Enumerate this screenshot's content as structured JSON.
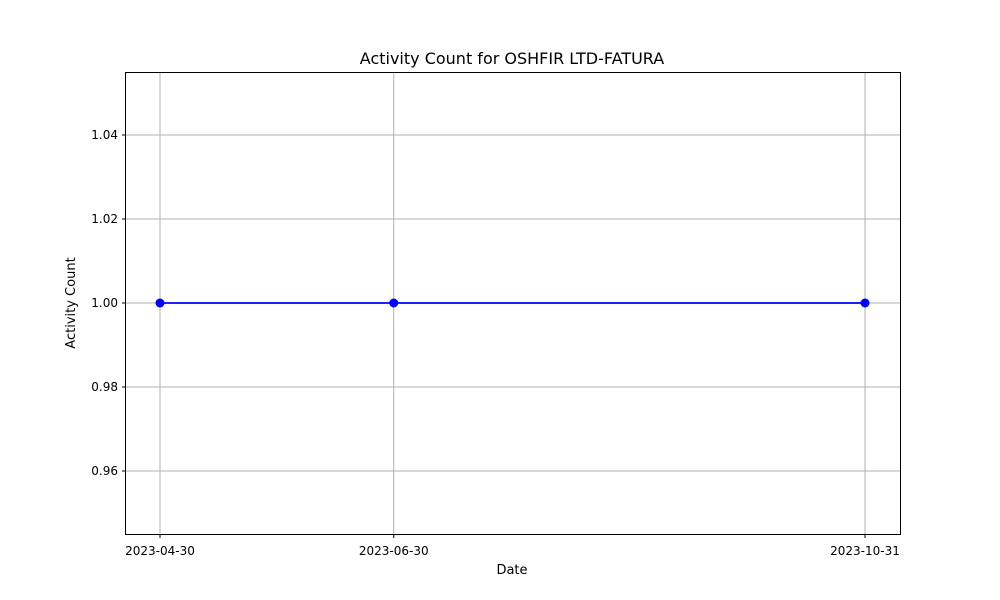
{
  "chart_data": {
    "type": "line",
    "title": "Activity Count for OSHFIR LTD-FATURA",
    "xlabel": "Date",
    "ylabel": "Activity Count",
    "x": [
      "2023-04-30",
      "2023-06-30",
      "2023-10-31"
    ],
    "series": [
      {
        "values": [
          1.0,
          1.0,
          1.0
        ],
        "color": "#0000ff",
        "marker": "circle"
      }
    ],
    "ylim": [
      0.945,
      1.055
    ],
    "yticks": [
      "0.96",
      "0.98",
      "1.00",
      "1.02",
      "1.04"
    ],
    "grid": true
  }
}
